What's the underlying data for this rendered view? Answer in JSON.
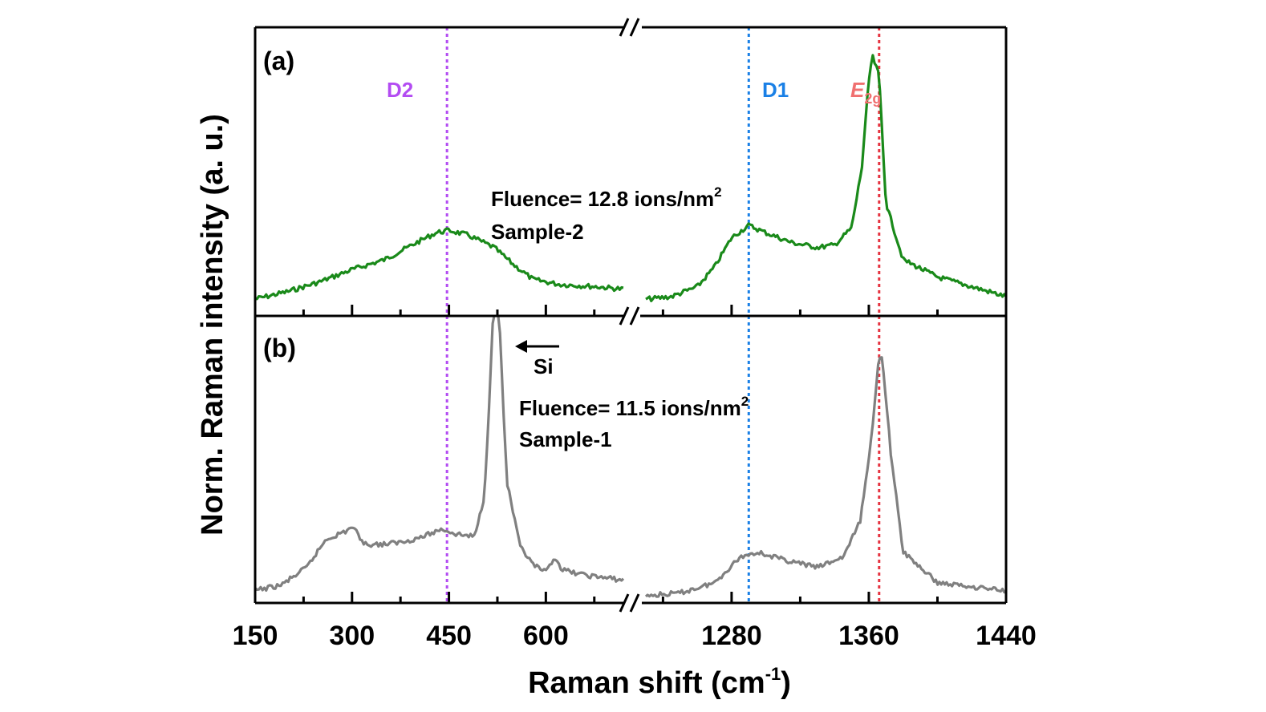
{
  "chart_data": {
    "type": "line",
    "xlabel": "Raman shift (cm",
    "xlabel_sup": "-1",
    "xlabel_end": ")",
    "ylabel": "Norm. Raman intensity (a. u.)",
    "x_segments": [
      {
        "xlim": [
          150,
          720
        ],
        "ticks": [
          150,
          300,
          450,
          600
        ],
        "tick_labels": [
          "150",
          "300",
          "450",
          "600"
        ]
      },
      {
        "xlim": [
          1230,
          1440
        ],
        "ticks": [
          1280,
          1360,
          1440
        ],
        "tick_labels": [
          "1280",
          "1360",
          "1440"
        ]
      }
    ],
    "axis_break": true,
    "reference_lines": [
      {
        "label": "D2",
        "x": 447,
        "color": "#b34cf2"
      },
      {
        "label": "D1",
        "x": 1290,
        "color": "#1a80e6"
      },
      {
        "label_main": "E",
        "label_sub": "2g",
        "x": 1366,
        "color": "#e63340"
      }
    ],
    "e2g_label_color": "#f07070",
    "panels": [
      {
        "label": "(a)",
        "color": "#1a8a1a",
        "fluence_text": "Fluence= 12.8 ions/nm",
        "fluence_sup": "2",
        "sample": "Sample-2",
        "points": [
          [
            150,
            0.01
          ],
          [
            200,
            0.04
          ],
          [
            250,
            0.08
          ],
          [
            300,
            0.13
          ],
          [
            350,
            0.17
          ],
          [
            400,
            0.24
          ],
          [
            430,
            0.28
          ],
          [
            450,
            0.29
          ],
          [
            480,
            0.27
          ],
          [
            520,
            0.22
          ],
          [
            550,
            0.15
          ],
          [
            580,
            0.09
          ],
          [
            620,
            0.07
          ],
          [
            680,
            0.06
          ],
          [
            720,
            0.05
          ],
          [
            1232,
            0.01
          ],
          [
            1245,
            0.02
          ],
          [
            1260,
            0.06
          ],
          [
            1270,
            0.14
          ],
          [
            1280,
            0.26
          ],
          [
            1290,
            0.31
          ],
          [
            1300,
            0.28
          ],
          [
            1315,
            0.24
          ],
          [
            1330,
            0.22
          ],
          [
            1340,
            0.23
          ],
          [
            1350,
            0.3
          ],
          [
            1356,
            0.55
          ],
          [
            1360,
            0.9
          ],
          [
            1362,
            1.0
          ],
          [
            1366,
            0.92
          ],
          [
            1370,
            0.4
          ],
          [
            1380,
            0.17
          ],
          [
            1400,
            0.1
          ],
          [
            1420,
            0.06
          ],
          [
            1440,
            0.02
          ]
        ]
      },
      {
        "label": "(b)",
        "color": "#808080",
        "fluence_text": "Fluence= 11.5 ions/nm",
        "fluence_sup": "2",
        "sample": "Sample-1",
        "si_label": "Si",
        "points": [
          [
            150,
            0.03
          ],
          [
            190,
            0.05
          ],
          [
            230,
            0.12
          ],
          [
            260,
            0.23
          ],
          [
            290,
            0.26
          ],
          [
            300,
            0.28
          ],
          [
            320,
            0.21
          ],
          [
            350,
            0.21
          ],
          [
            380,
            0.22
          ],
          [
            410,
            0.24
          ],
          [
            440,
            0.27
          ],
          [
            460,
            0.25
          ],
          [
            490,
            0.24
          ],
          [
            505,
            0.4
          ],
          [
            512,
            0.75
          ],
          [
            518,
            1.1
          ],
          [
            528,
            1.1
          ],
          [
            534,
            0.75
          ],
          [
            540,
            0.45
          ],
          [
            560,
            0.2
          ],
          [
            580,
            0.13
          ],
          [
            600,
            0.1
          ],
          [
            615,
            0.16
          ],
          [
            625,
            0.11
          ],
          [
            660,
            0.09
          ],
          [
            720,
            0.07
          ],
          [
            1232,
            0.01
          ],
          [
            1250,
            0.02
          ],
          [
            1270,
            0.06
          ],
          [
            1285,
            0.16
          ],
          [
            1295,
            0.18
          ],
          [
            1310,
            0.15
          ],
          [
            1330,
            0.12
          ],
          [
            1345,
            0.16
          ],
          [
            1355,
            0.3
          ],
          [
            1362,
            0.65
          ],
          [
            1366,
            0.95
          ],
          [
            1368,
            0.93
          ],
          [
            1373,
            0.55
          ],
          [
            1380,
            0.18
          ],
          [
            1400,
            0.06
          ],
          [
            1440,
            0.03
          ]
        ]
      }
    ]
  }
}
